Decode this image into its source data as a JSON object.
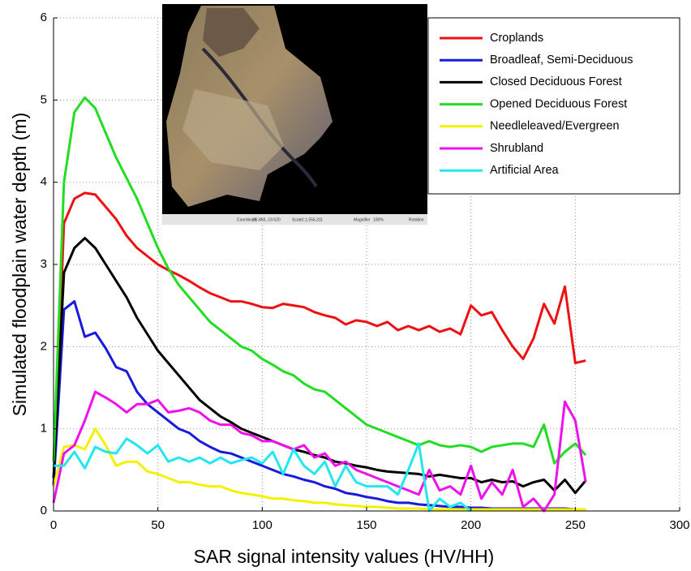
{
  "chart_data": {
    "type": "line",
    "xlabel": "SAR signal intensity values  (HV/HH)",
    "ylabel": "Simulated floodplain water depth (m)",
    "x": [
      0,
      5,
      10,
      15,
      20,
      25,
      30,
      35,
      40,
      45,
      50,
      55,
      60,
      65,
      70,
      75,
      80,
      85,
      90,
      95,
      100,
      105,
      110,
      115,
      120,
      125,
      130,
      135,
      140,
      145,
      150,
      155,
      160,
      165,
      170,
      175,
      180,
      185,
      190,
      195,
      200,
      205,
      210,
      215,
      220,
      225,
      230,
      235,
      240,
      245,
      250,
      255
    ],
    "series": [
      {
        "name": "Croplands",
        "color": "#ee1111",
        "values": [
          0.3,
          3.5,
          3.8,
          3.87,
          3.85,
          3.7,
          3.55,
          3.35,
          3.2,
          3.1,
          3.0,
          2.93,
          2.87,
          2.8,
          2.72,
          2.65,
          2.6,
          2.55,
          2.55,
          2.52,
          2.48,
          2.47,
          2.52,
          2.5,
          2.48,
          2.42,
          2.38,
          2.35,
          2.27,
          2.32,
          2.3,
          2.25,
          2.3,
          2.2,
          2.25,
          2.2,
          2.25,
          2.18,
          2.22,
          2.15,
          2.5,
          2.38,
          2.42,
          2.2,
          2.0,
          1.85,
          2.1,
          2.52,
          2.28,
          2.73,
          1.8,
          1.83
        ]
      },
      {
        "name": "Broadleaf, Semi-Deciduous",
        "color": "#1a1adc",
        "values": [
          0.3,
          2.45,
          2.55,
          2.12,
          2.17,
          1.98,
          1.75,
          1.7,
          1.45,
          1.3,
          1.2,
          1.1,
          1.0,
          0.95,
          0.85,
          0.78,
          0.72,
          0.7,
          0.65,
          0.6,
          0.55,
          0.5,
          0.45,
          0.42,
          0.38,
          0.35,
          0.3,
          0.27,
          0.22,
          0.2,
          0.17,
          0.15,
          0.12,
          0.1,
          0.1,
          0.08,
          0.07,
          0.06,
          0.05,
          0.05,
          0.04,
          0.04,
          0.03,
          0.03,
          0.03,
          0.03,
          0.03,
          0.03,
          0.03,
          0.03,
          0.02,
          0.02
        ]
      },
      {
        "name": "Closed Deciduous Forest",
        "color": "#000000",
        "values": [
          0.4,
          2.9,
          3.2,
          3.32,
          3.2,
          3.0,
          2.8,
          2.6,
          2.35,
          2.15,
          1.95,
          1.8,
          1.65,
          1.5,
          1.35,
          1.25,
          1.15,
          1.08,
          1.0,
          0.95,
          0.9,
          0.85,
          0.8,
          0.75,
          0.72,
          0.68,
          0.65,
          0.6,
          0.58,
          0.55,
          0.53,
          0.5,
          0.48,
          0.47,
          0.46,
          0.45,
          0.42,
          0.44,
          0.42,
          0.4,
          0.4,
          0.35,
          0.38,
          0.35,
          0.36,
          0.3,
          0.35,
          0.38,
          0.25,
          0.38,
          0.22,
          0.37
        ]
      },
      {
        "name": "Opened Deciduous Forest",
        "color": "#22dd22",
        "values": [
          0.6,
          4.0,
          4.85,
          5.03,
          4.9,
          4.6,
          4.3,
          4.05,
          3.8,
          3.5,
          3.2,
          2.95,
          2.75,
          2.6,
          2.45,
          2.3,
          2.2,
          2.1,
          2.0,
          1.95,
          1.85,
          1.78,
          1.7,
          1.65,
          1.55,
          1.48,
          1.45,
          1.35,
          1.25,
          1.15,
          1.05,
          1.0,
          0.95,
          0.9,
          0.85,
          0.8,
          0.85,
          0.8,
          0.78,
          0.8,
          0.78,
          0.72,
          0.78,
          0.8,
          0.82,
          0.82,
          0.78,
          1.05,
          0.58,
          0.72,
          0.82,
          0.68
        ]
      },
      {
        "name": "Needleleaved/Evergreen",
        "color": "#f2f200",
        "values": [
          0.3,
          0.78,
          0.8,
          0.75,
          1.0,
          0.8,
          0.55,
          0.6,
          0.6,
          0.48,
          0.45,
          0.4,
          0.35,
          0.35,
          0.32,
          0.3,
          0.3,
          0.25,
          0.22,
          0.2,
          0.18,
          0.15,
          0.15,
          0.13,
          0.12,
          0.1,
          0.1,
          0.08,
          0.07,
          0.06,
          0.05,
          0.05,
          0.04,
          0.03,
          0.03,
          0.03,
          0.02,
          0.02,
          0.02,
          0.02,
          0.02,
          0.02,
          0.02,
          0.02,
          0.02,
          0.02,
          0.02,
          0.02,
          0.02,
          0.02,
          0.02,
          0.02
        ]
      },
      {
        "name": "Shrubland",
        "color": "#ee11ee",
        "values": [
          0.1,
          0.7,
          0.8,
          1.1,
          1.45,
          1.38,
          1.3,
          1.2,
          1.3,
          1.3,
          1.35,
          1.2,
          1.22,
          1.25,
          1.2,
          1.1,
          1.05,
          1.05,
          0.95,
          0.92,
          0.85,
          0.85,
          0.8,
          0.75,
          0.8,
          0.65,
          0.7,
          0.55,
          0.6,
          0.5,
          0.45,
          0.4,
          0.35,
          0.3,
          0.25,
          0.2,
          0.5,
          0.25,
          0.3,
          0.2,
          0.55,
          0.15,
          0.35,
          0.2,
          0.5,
          0.05,
          0.15,
          0.0,
          0.2,
          1.33,
          1.1,
          0.35
        ]
      },
      {
        "name": "Artificial Area",
        "color": "#22e6f0",
        "values": [
          0.55,
          0.55,
          0.72,
          0.52,
          0.78,
          0.72,
          0.7,
          0.88,
          0.8,
          0.7,
          0.8,
          0.6,
          0.65,
          0.6,
          0.65,
          0.58,
          0.65,
          0.58,
          0.62,
          0.65,
          0.58,
          0.72,
          0.45,
          0.75,
          0.55,
          0.45,
          0.6,
          0.3,
          0.55,
          0.35,
          0.3,
          0.3,
          0.3,
          0.2,
          0.5,
          0.82,
          0.0,
          0.15,
          0.05,
          0.1,
          0.0,
          null,
          null,
          null,
          null,
          null,
          null,
          null,
          null,
          null,
          null,
          null
        ]
      }
    ],
    "xlim": [
      0,
      300
    ],
    "xticks": [
      0,
      50,
      100,
      150,
      200,
      250,
      300
    ],
    "ylim": [
      0,
      6
    ],
    "yticks": [
      0,
      1,
      2,
      3,
      4,
      5,
      6
    ],
    "grid": true,
    "legend": "upper right"
  },
  "inset": {
    "labels": [
      "Coordinate",
      "35.860,-19.520",
      "Scale",
      "1:1,556,311",
      "Magnifier",
      "100%",
      "Rotation"
    ]
  }
}
